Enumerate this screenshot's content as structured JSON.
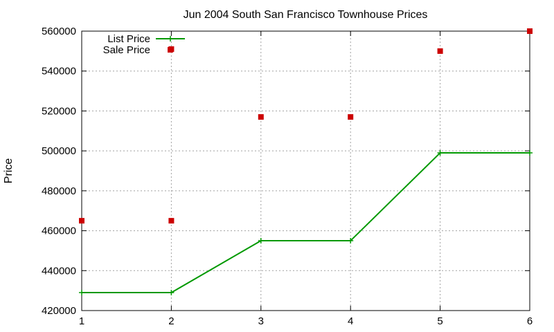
{
  "chart_data": {
    "type": "line",
    "title": "Jun 2004 South San Francisco Townhouse Prices",
    "xlabel": "",
    "ylabel": "Price",
    "xlim": [
      1,
      6
    ],
    "ylim": [
      420000,
      560000
    ],
    "x_ticks": [
      1,
      2,
      3,
      4,
      5,
      6
    ],
    "y_ticks": [
      420000,
      440000,
      460000,
      480000,
      500000,
      520000,
      540000,
      560000
    ],
    "grid": true,
    "legend_position": "top-left",
    "series": [
      {
        "name": "List Price",
        "style": "line-with-plus-markers",
        "color": "#009900",
        "x": [
          1,
          2,
          3,
          4,
          5,
          6
        ],
        "y": [
          429000,
          429000,
          455000,
          455000,
          499000,
          499000
        ]
      },
      {
        "name": "Sale Price",
        "style": "square-markers",
        "color": "#cc0000",
        "x": [
          1,
          2,
          2,
          3,
          4,
          5,
          6
        ],
        "y": [
          465000,
          465000,
          551000,
          517000,
          517000,
          550000,
          560000
        ]
      }
    ]
  }
}
